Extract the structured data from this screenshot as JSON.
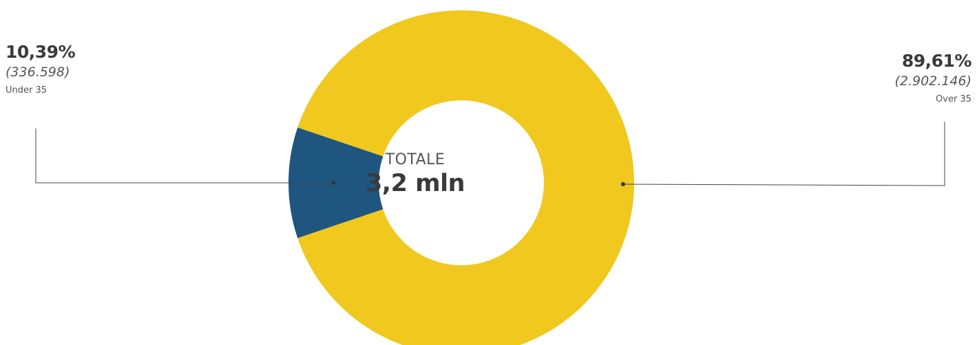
{
  "chart_data": {
    "type": "pie",
    "style": "donut",
    "center": {
      "label": "TOTALE",
      "value": "3,2 mln"
    },
    "slices": [
      {
        "key": "under35",
        "category": "Under 35",
        "percent": 10.39,
        "percent_label": "10,39%",
        "count": 336598,
        "count_label": "(336.598)",
        "color": "#1e567f"
      },
      {
        "key": "over35",
        "category": "Over 35",
        "percent": 89.61,
        "percent_label": "89,61%",
        "count": 2902146,
        "count_label": "(2.902.146)",
        "color": "#f0c81e"
      }
    ]
  }
}
